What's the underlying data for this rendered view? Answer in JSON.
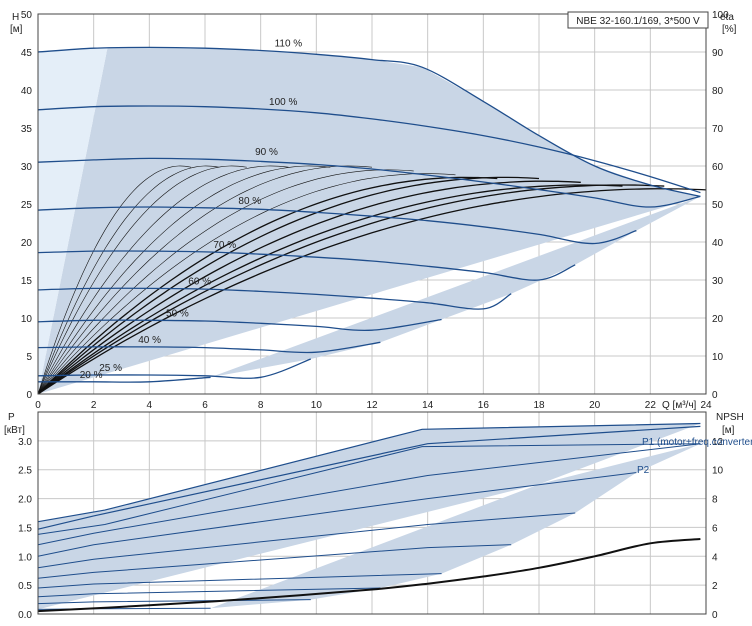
{
  "colors": {
    "curve": "#1f4e8c",
    "eta": "#111111",
    "envelope": "#c9d6e6",
    "lowflow": "#e4eef8",
    "grid": "#c8c8c8"
  },
  "chart_data": [
    {
      "type": "line",
      "title": "NBE 32-160.1/169, 3*500 V",
      "xlabel": "Q [м³/ч]",
      "ylabel": "H\n[м]",
      "ylabel_right": "eta\n[%]",
      "xlim": [
        0,
        24
      ],
      "ylim": [
        0,
        50
      ],
      "ylim_right": [
        0,
        100
      ],
      "xticks": [
        "0",
        "2",
        "4",
        "6",
        "8",
        "10",
        "12",
        "14",
        "16",
        "18",
        "20",
        "22",
        "24"
      ],
      "yticks": [
        "0",
        "5",
        "10",
        "15",
        "20",
        "25",
        "30",
        "35",
        "40",
        "45",
        "50"
      ],
      "yticks_right": [
        "0",
        "10",
        "20",
        "30",
        "40",
        "50",
        "60",
        "70",
        "80",
        "90",
        "100"
      ],
      "series": [
        {
          "name": "110 %",
          "label_q": 8.5,
          "q": [
            0,
            2,
            4,
            6,
            8,
            10,
            12,
            13.8,
            16,
            18,
            20,
            22,
            23.8
          ],
          "h": [
            45,
            45.5,
            45.6,
            45.5,
            45.2,
            44.7,
            44,
            43,
            38.5,
            34,
            30,
            27.5,
            26
          ]
        },
        {
          "name": "100 %",
          "label_q": 8.3,
          "q": [
            0,
            2,
            4,
            6,
            8,
            10,
            12,
            14,
            16,
            18,
            20,
            22,
            23.8
          ],
          "h": [
            37.4,
            37.8,
            37.9,
            37.8,
            37.5,
            37,
            36.2,
            35.2,
            34,
            32.5,
            30.7,
            28.6,
            26.5
          ]
        },
        {
          "name": "90 %",
          "label_q": 7.8,
          "q": [
            0,
            2,
            4,
            6,
            8,
            10,
            12,
            14,
            16,
            18,
            20,
            22,
            23.8
          ],
          "h": [
            30.5,
            30.8,
            31,
            30.9,
            30.6,
            30.2,
            29.6,
            28.8,
            27.9,
            26.9,
            25.8,
            24.6,
            26
          ]
        },
        {
          "name": "80 %",
          "label_q": 7.2,
          "q": [
            0,
            2,
            4,
            6,
            8,
            10,
            12,
            14,
            16,
            18,
            20,
            21.5
          ],
          "h": [
            24.2,
            24.5,
            24.6,
            24.5,
            24.3,
            23.9,
            23.4,
            22.8,
            22,
            21,
            19.8,
            21.5
          ]
        },
        {
          "name": "70 %",
          "label_q": 6.3,
          "q": [
            0,
            2,
            4,
            6,
            8,
            10,
            12,
            14,
            16,
            18,
            19.3
          ],
          "h": [
            18.6,
            18.8,
            18.8,
            18.7,
            18.4,
            18,
            17.5,
            16.8,
            16,
            15,
            17
          ]
        },
        {
          "name": "60 %",
          "label_q": 5.4,
          "q": [
            0,
            2,
            4,
            6,
            8,
            10,
            12,
            14,
            16,
            17
          ],
          "h": [
            13.7,
            13.9,
            13.9,
            13.8,
            13.5,
            13.1,
            12.6,
            12,
            11.2,
            13.2
          ]
        },
        {
          "name": "50 %",
          "label_q": 4.6,
          "q": [
            0,
            2,
            4,
            6,
            8,
            10,
            12,
            14.5
          ],
          "h": [
            9.5,
            9.7,
            9.7,
            9.6,
            9.3,
            8.9,
            8.4,
            9.8
          ]
        },
        {
          "name": "40 %",
          "label_q": 3.6,
          "q": [
            0,
            2,
            4,
            6,
            8,
            10,
            12.3
          ],
          "h": [
            6.1,
            6.2,
            6.2,
            6.1,
            5.8,
            5.5,
            6.8
          ]
        },
        {
          "name": "25 %",
          "label_q": 2.2,
          "q": [
            0,
            2,
            4,
            6,
            8,
            9.8
          ],
          "h": [
            2.4,
            2.5,
            2.5,
            2.4,
            2.2,
            4.6
          ]
        },
        {
          "name": "20 %",
          "label_q": 1.5,
          "q": [
            0,
            2,
            4,
            6.2
          ],
          "h": [
            1.6,
            1.6,
            1.6,
            2.2
          ]
        }
      ],
      "eta_series": [
        {
          "q_max": 5.5,
          "peak": 60
        },
        {
          "q_max": 6.5,
          "peak": 60
        },
        {
          "q_max": 7.5,
          "peak": 60
        },
        {
          "q_max": 9,
          "peak": 60
        },
        {
          "q_max": 10.5,
          "peak": 60
        },
        {
          "q_max": 12,
          "peak": 60
        },
        {
          "q_max": 13.5,
          "peak": 59
        },
        {
          "q_max": 15,
          "peak": 58
        },
        {
          "q_max": 16.5,
          "peak": 57
        },
        {
          "q_max": 18,
          "peak": 57
        },
        {
          "q_max": 19.5,
          "peak": 56
        },
        {
          "q_max": 21,
          "peak": 55
        },
        {
          "q_max": 22.5,
          "peak": 55
        },
        {
          "q_max": 24,
          "peak": 54
        }
      ]
    },
    {
      "type": "line",
      "title": "",
      "xlabel": "",
      "ylabel": "P\n[кВт]",
      "ylabel_right": "NPSH\n[м]",
      "xlim": [
        0,
        24
      ],
      "ylim": [
        0,
        3.5
      ],
      "ylim_right": [
        0,
        14
      ],
      "yticks": [
        "0.0",
        "0.5",
        "1.0",
        "1.5",
        "2.0",
        "2.5",
        "3.0"
      ],
      "yticks_right": [
        "0",
        "2",
        "4",
        "6",
        "8",
        "10",
        "12"
      ],
      "legend": [
        "P1 (motor+freq.converter)",
        "P2"
      ],
      "p1_series": [
        {
          "name": "110 %",
          "q": [
            0,
            2.4,
            13.8,
            23.8
          ],
          "p": [
            1.6,
            1.8,
            3.2,
            3.3
          ]
        },
        {
          "name": "100 %",
          "q": [
            0,
            2,
            14,
            23.8
          ],
          "p": [
            1.47,
            1.7,
            2.95,
            3.25
          ]
        }
      ],
      "p2_series": [
        {
          "name": "110 %",
          "q": [
            0,
            2.4,
            13.8,
            23.8
          ],
          "p": [
            1.38,
            1.55,
            2.9,
            2.95
          ]
        },
        {
          "name": "100 %",
          "q": [
            0,
            2,
            14,
            23.8
          ],
          "p": [
            1.2,
            1.4,
            2.4,
            2.95
          ]
        },
        {
          "name": "90 %",
          "q": [
            0,
            2,
            14,
            21.5
          ],
          "p": [
            1.0,
            1.2,
            2.0,
            2.45
          ]
        },
        {
          "name": "80 %",
          "q": [
            0,
            2,
            14,
            19.3
          ],
          "p": [
            0.8,
            0.95,
            1.55,
            1.75
          ]
        },
        {
          "name": "70 %",
          "q": [
            0,
            2,
            14,
            17
          ],
          "p": [
            0.62,
            0.72,
            1.15,
            1.2
          ]
        },
        {
          "name": "60 %",
          "q": [
            0,
            2,
            14.5
          ],
          "p": [
            0.45,
            0.52,
            0.7
          ]
        },
        {
          "name": "50 %",
          "q": [
            0,
            2,
            12.3
          ],
          "p": [
            0.3,
            0.35,
            0.45
          ]
        },
        {
          "name": "40 %",
          "q": [
            0,
            2,
            9.8
          ],
          "p": [
            0.18,
            0.21,
            0.25
          ]
        },
        {
          "name": "25 %",
          "q": [
            0,
            2,
            6.2
          ],
          "p": [
            0.08,
            0.09,
            0.1
          ]
        }
      ],
      "npsh_series": [
        {
          "q": [
            0,
            4,
            8,
            12,
            14,
            16,
            18,
            20,
            22,
            23.8
          ],
          "npsh": [
            0.2,
            0.6,
            1.1,
            1.7,
            2.1,
            2.6,
            3.2,
            4.0,
            4.9,
            5.2
          ]
        }
      ]
    }
  ]
}
